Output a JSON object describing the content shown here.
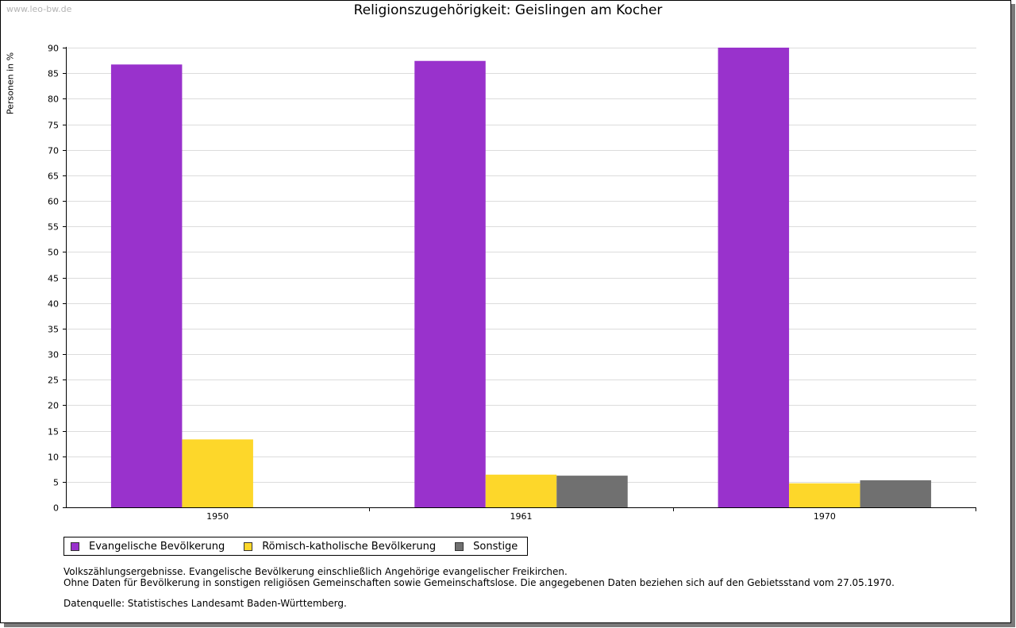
{
  "watermark": "www.leo-bw.de",
  "chart_data": {
    "type": "bar",
    "title": "Religionszugehörigkeit: Geislingen am Kocher",
    "xlabel": "",
    "ylabel": "Personen in %",
    "ylim": [
      0,
      90
    ],
    "ytick_step": 5,
    "grid": true,
    "legend_position": "bottom-left",
    "categories": [
      "1950",
      "1961",
      "1970"
    ],
    "series": [
      {
        "name": "Evangelische Bevölkerung",
        "color": "#9932cc",
        "values": [
          86.7,
          87.4,
          90.0
        ]
      },
      {
        "name": "Römisch-katholische Bevölkerung",
        "color": "#fdd72a",
        "values": [
          13.3,
          6.4,
          4.7
        ]
      },
      {
        "name": "Sonstige",
        "color": "#707070",
        "values": [
          null,
          6.2,
          5.3
        ]
      }
    ]
  },
  "notes": {
    "line1": "Volkszählungsergebnisse. Evangelische Bevölkerung einschließlich Angehörige evangelischer Freikirchen.",
    "line2": "Ohne Daten für Bevölkerung in sonstigen religiösen Gemeinschaften sowie Gemeinschaftslose. Die angegebenen Daten beziehen sich auf den Gebietsstand vom 27.05.1970.",
    "source": "Datenquelle: Statistisches Landesamt Baden-Württemberg."
  }
}
